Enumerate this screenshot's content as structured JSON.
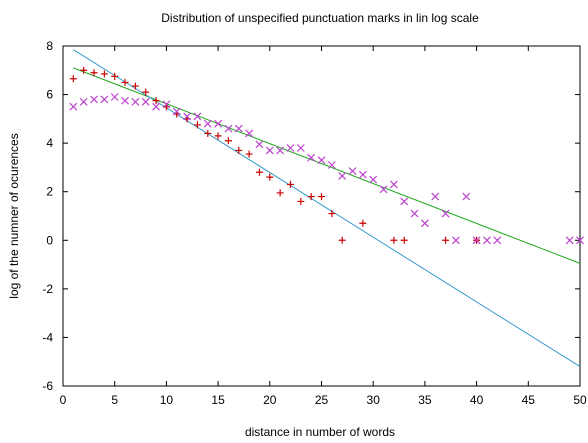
{
  "chart_data": {
    "type": "scatter",
    "title": "Distribution of unspecified punctuation marks in lin log scale",
    "xlabel": "distance in number of words",
    "ylabel": "log of the numner of ocurences",
    "xlim": [
      0,
      50
    ],
    "ylim": [
      -6,
      8
    ],
    "x_ticks": [
      "0",
      "5",
      "10",
      "15",
      "20",
      "25",
      "30",
      "35",
      "40",
      "45",
      "50"
    ],
    "y_ticks": [
      "-6",
      "-4",
      "-2",
      "0",
      "2",
      "4",
      "6",
      "8"
    ],
    "grid": false,
    "legend": "none",
    "series": [
      {
        "marker": "plus",
        "color": "#cc0000",
        "points": [
          [
            1,
            6.65
          ],
          [
            2,
            7.0
          ],
          [
            3,
            6.9
          ],
          [
            4,
            6.85
          ],
          [
            5,
            6.75
          ],
          [
            6,
            6.5
          ],
          [
            7,
            6.35
          ],
          [
            8,
            6.1
          ],
          [
            9,
            5.75
          ],
          [
            10,
            5.5
          ],
          [
            11,
            5.2
          ],
          [
            12,
            5.0
          ],
          [
            13,
            4.75
          ],
          [
            14,
            4.4
          ],
          [
            15,
            4.3
          ],
          [
            16,
            4.1
          ],
          [
            17,
            3.7
          ],
          [
            18,
            3.55
          ],
          [
            19,
            2.8
          ],
          [
            20,
            2.6
          ],
          [
            21,
            1.95
          ],
          [
            22,
            2.3
          ],
          [
            23,
            1.6
          ],
          [
            24,
            1.8
          ],
          [
            25,
            1.8
          ],
          [
            26,
            1.1
          ],
          [
            27,
            0.0
          ],
          [
            29,
            0.7
          ],
          [
            32,
            0.0
          ],
          [
            33,
            0.0
          ],
          [
            37,
            0.0
          ],
          [
            40,
            0.0
          ]
        ]
      },
      {
        "marker": "cross",
        "color": "#bb44cc",
        "points": [
          [
            1,
            5.5
          ],
          [
            2,
            5.7
          ],
          [
            3,
            5.8
          ],
          [
            4,
            5.8
          ],
          [
            5,
            5.9
          ],
          [
            6,
            5.75
          ],
          [
            7,
            5.7
          ],
          [
            8,
            5.7
          ],
          [
            9,
            5.5
          ],
          [
            10,
            5.6
          ],
          [
            11,
            5.3
          ],
          [
            12,
            5.1
          ],
          [
            13,
            5.1
          ],
          [
            14,
            4.8
          ],
          [
            15,
            4.8
          ],
          [
            16,
            4.6
          ],
          [
            17,
            4.6
          ],
          [
            18,
            4.4
          ],
          [
            19,
            3.95
          ],
          [
            20,
            3.7
          ],
          [
            21,
            3.7
          ],
          [
            22,
            3.8
          ],
          [
            23,
            3.8
          ],
          [
            24,
            3.4
          ],
          [
            25,
            3.3
          ],
          [
            26,
            3.1
          ],
          [
            27,
            2.65
          ],
          [
            28,
            2.85
          ],
          [
            29,
            2.7
          ],
          [
            30,
            2.5
          ],
          [
            31,
            2.1
          ],
          [
            32,
            2.3
          ],
          [
            33,
            1.6
          ],
          [
            34,
            1.1
          ],
          [
            35,
            0.7
          ],
          [
            36,
            1.8
          ],
          [
            37,
            1.1
          ],
          [
            38,
            0.0
          ],
          [
            39,
            1.8
          ],
          [
            40,
            0.0
          ],
          [
            41,
            0.0
          ],
          [
            42,
            0.0
          ],
          [
            49,
            0.0
          ],
          [
            50,
            0.0
          ]
        ]
      }
    ],
    "fit_lines": [
      {
        "color": "#22aa22",
        "x": [
          1,
          50
        ],
        "y": [
          7.1,
          -0.95
        ]
      },
      {
        "color": "#3399cc",
        "x": [
          1,
          50
        ],
        "y": [
          7.85,
          -5.2
        ]
      }
    ]
  }
}
